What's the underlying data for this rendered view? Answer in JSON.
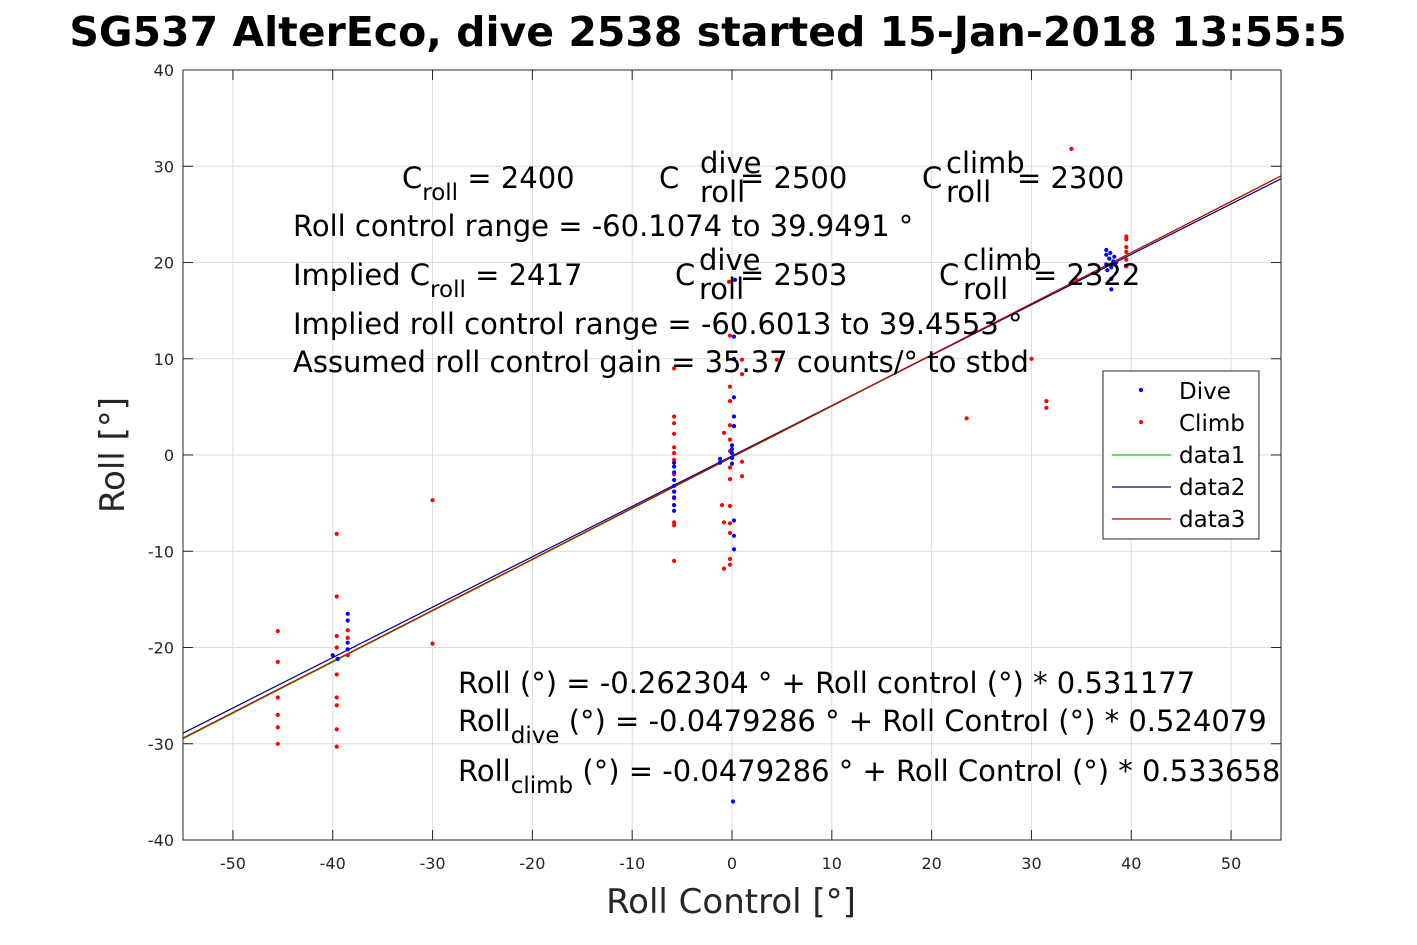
{
  "chart_data": {
    "type": "scatter",
    "title": "SG537 AlterEco, dive 2538 started 15-Jan-2018 13:55:5",
    "xlabel": "Roll Control [°]",
    "ylabel": "Roll [°]",
    "xlim": [
      -55,
      55
    ],
    "ylim": [
      -40,
      40
    ],
    "xticks": [
      -50,
      -40,
      -30,
      -20,
      -10,
      0,
      10,
      20,
      30,
      40,
      50
    ],
    "yticks": [
      -40,
      -30,
      -20,
      -10,
      0,
      10,
      20,
      30,
      40
    ],
    "grid": true,
    "legend_position": "right",
    "colors": {
      "dive": "#0000ff",
      "climb": "#ff0000",
      "data1": "#00cc00",
      "data2": "#00008b",
      "data3": "#cc0000",
      "axis": "#262626",
      "grid": "#dcdcdc"
    },
    "series": [
      {
        "name": "Dive",
        "kind": "points",
        "color": "#0000ff",
        "points": [
          [
            -38.5,
            -16.5
          ],
          [
            -38.5,
            -17.2
          ],
          [
            -38.5,
            -19.5
          ],
          [
            -38.5,
            -20.2
          ],
          [
            -40,
            -20.8
          ],
          [
            -39.5,
            -21.2
          ],
          [
            -5.8,
            -0.8
          ],
          [
            -5.8,
            -1.2
          ],
          [
            -5.8,
            -1.8
          ],
          [
            -5.8,
            -2.6
          ],
          [
            -5.8,
            -3.2
          ],
          [
            -5.8,
            -3.8
          ],
          [
            -5.8,
            -4.4
          ],
          [
            -5.8,
            -5.2
          ],
          [
            -5.8,
            -5.8
          ],
          [
            -1.2,
            -0.4
          ],
          [
            -1.2,
            -0.8
          ],
          [
            0,
            0.2
          ],
          [
            0,
            0.6
          ],
          [
            0,
            1.0
          ],
          [
            0,
            -0.3
          ],
          [
            0,
            -0.9
          ],
          [
            0.2,
            3.0
          ],
          [
            0.2,
            4.0
          ],
          [
            0.2,
            6.0
          ],
          [
            0.2,
            10.0
          ],
          [
            0.2,
            12.3
          ],
          [
            0.3,
            18.2
          ],
          [
            0.2,
            -6.8
          ],
          [
            0.2,
            -8.4
          ],
          [
            0.2,
            -9.8
          ],
          [
            0.1,
            -36.0
          ],
          [
            37.5,
            21.3
          ],
          [
            37.5,
            20.8
          ],
          [
            37.8,
            20.4
          ],
          [
            38.2,
            20.1
          ],
          [
            37.5,
            19.8
          ],
          [
            38,
            19.5
          ],
          [
            37.6,
            19.2
          ],
          [
            38,
            18.3
          ],
          [
            38,
            17.2
          ],
          [
            38.3,
            20.6
          ],
          [
            37.9,
            21.0
          ],
          [
            38.4,
            19.9
          ]
        ]
      },
      {
        "name": "Climb",
        "kind": "points",
        "color": "#ff0000",
        "points": [
          [
            -45.5,
            -18.3
          ],
          [
            -45.5,
            -21.5
          ],
          [
            -45.5,
            -25.2
          ],
          [
            -45.5,
            -27.0
          ],
          [
            -45.5,
            -28.3
          ],
          [
            -45.5,
            -30.0
          ],
          [
            -39.6,
            -8.2
          ],
          [
            -39.6,
            -14.7
          ],
          [
            -39.6,
            -18.8
          ],
          [
            -39.6,
            -20.0
          ],
          [
            -39.6,
            -22.8
          ],
          [
            -39.6,
            -25.2
          ],
          [
            -39.6,
            -26.0
          ],
          [
            -39.6,
            -28.5
          ],
          [
            -39.6,
            -30.3
          ],
          [
            -38.5,
            -18.2
          ],
          [
            -38.5,
            -19.0
          ],
          [
            -38.5,
            -20.8
          ],
          [
            -30,
            -4.7
          ],
          [
            -30,
            -19.6
          ],
          [
            -5.8,
            9.0
          ],
          [
            -5.8,
            4.0
          ],
          [
            -5.8,
            3.3
          ],
          [
            -5.8,
            2.2
          ],
          [
            -5.8,
            0.8
          ],
          [
            -5.8,
            0.2
          ],
          [
            -5.8,
            -0.5
          ],
          [
            -5.8,
            -2.0
          ],
          [
            -5.8,
            -4.5
          ],
          [
            -5.8,
            -7.0
          ],
          [
            -5.8,
            -7.3
          ],
          [
            -5.8,
            -11.0
          ],
          [
            -1,
            -5.2
          ],
          [
            -0.8,
            -7.0
          ],
          [
            -0.8,
            -11.8
          ],
          [
            -0.8,
            2.3
          ],
          [
            -0.3,
            18.0
          ],
          [
            -0.2,
            12.4
          ],
          [
            -0.2,
            7.1
          ],
          [
            -0.2,
            5.6
          ],
          [
            -0.2,
            3.1
          ],
          [
            -0.2,
            1.6
          ],
          [
            -0.2,
            0.4
          ],
          [
            -0.2,
            -1.3
          ],
          [
            -0.2,
            -2.5
          ],
          [
            -0.2,
            -5.3
          ],
          [
            -0.2,
            -7.1
          ],
          [
            -0.2,
            -8.1
          ],
          [
            -0.2,
            -10.8
          ],
          [
            -0.2,
            -11.4
          ],
          [
            1,
            9.9
          ],
          [
            1,
            8.4
          ],
          [
            1,
            -0.7
          ],
          [
            1,
            -2.2
          ],
          [
            4.5,
            9.9
          ],
          [
            23.5,
            3.8
          ],
          [
            30,
            10.0
          ],
          [
            31.5,
            5.6
          ],
          [
            31.5,
            4.9
          ],
          [
            34,
            31.8
          ],
          [
            34.5,
            18.2
          ],
          [
            39.5,
            22.7
          ],
          [
            39.5,
            22.4
          ],
          [
            39.5,
            21.6
          ],
          [
            39.5,
            21.1
          ],
          [
            39.5,
            20.3
          ],
          [
            39.5,
            19.6
          ],
          [
            38.5,
            20.0
          ]
        ]
      },
      {
        "name": "data1",
        "kind": "line",
        "color": "#00cc00",
        "x": [
          -55,
          55
        ],
        "y": [
          -29.5,
          29.0
        ]
      },
      {
        "name": "data2",
        "kind": "line",
        "color": "#00008b",
        "x": [
          -55,
          55
        ],
        "y": [
          -28.9,
          28.7
        ]
      },
      {
        "name": "data3",
        "kind": "line",
        "color": "#cc0000",
        "x": [
          -55,
          55
        ],
        "y": [
          -29.4,
          29.0
        ]
      }
    ],
    "annotations": {
      "c_roll": {
        "base": "C",
        "sub": "roll",
        "value": " = 2400"
      },
      "c_roll_dive": {
        "base": "C",
        "sub": "roll",
        "sup": "dive",
        "value": " = 2500"
      },
      "c_roll_climb": {
        "base": "C",
        "sub": "roll",
        "sup": "climb",
        "value": " = 2300"
      },
      "range": "Roll control range = -60.1074 to 39.9491 °",
      "implied_c_roll": {
        "prefix": "Implied C",
        "sub": "roll",
        "value": " = 2417"
      },
      "implied_c_dive": {
        "base": "C",
        "sub": "roll",
        "sup": "dive",
        "value": " = 2503"
      },
      "implied_c_climb": {
        "base": "C",
        "sub": "roll",
        "sup": "climb",
        "value": " = 2322"
      },
      "implied_range": "Implied roll control range = -60.6013 to 39.4553 °",
      "gain": "Assumed roll control gain = 35.37 counts/° to stbd",
      "fit": "Roll (°) = -0.262304 ° + Roll control (°) * 0.531177",
      "fit_dive": {
        "base": "Roll",
        "sub": "dive",
        "value": " (°) = -0.0479286 ° + Roll Control (°) * 0.524079"
      },
      "fit_climb": {
        "base": "Roll",
        "sub": "climb",
        "value": " (°) = -0.0479286 ° + Roll Control (°) * 0.533658"
      }
    }
  }
}
